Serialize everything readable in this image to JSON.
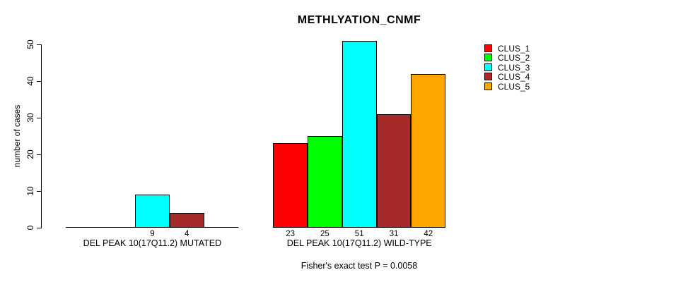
{
  "title": "METHLYATION_CNMF",
  "annotation": "Fisher's exact test P = 0.0058",
  "chart_data": {
    "type": "bar",
    "title": "METHLYATION_CNMF",
    "xlabel": "",
    "ylabel": "number of cases",
    "ylim": [
      0,
      51
    ],
    "yticks": [
      0,
      10,
      20,
      30,
      40,
      50
    ],
    "grid": false,
    "legend_position": "top-right",
    "categories": [
      "DEL PEAK 10(17Q11.2) MUTATED",
      "DEL PEAK 10(17Q11.2) WILD-TYPE"
    ],
    "series": [
      {
        "name": "CLUS_1",
        "color": "#FF0000",
        "values": [
          0,
          23
        ]
      },
      {
        "name": "CLUS_2",
        "color": "#00FF00",
        "values": [
          0,
          25
        ]
      },
      {
        "name": "CLUS_3",
        "color": "#00FFFF",
        "values": [
          9,
          51
        ]
      },
      {
        "name": "CLUS_4",
        "color": "#A52A2A",
        "values": [
          4,
          31
        ]
      },
      {
        "name": "CLUS_5",
        "color": "#FFA500",
        "values": [
          0,
          42
        ]
      }
    ],
    "bar_value_labels_shown": [
      [
        "9",
        "4"
      ],
      [
        "23",
        "25",
        "51",
        "31",
        "42"
      ]
    ],
    "zero_value_labels_hidden": true,
    "annotation": "Fisher's exact test P = 0.0058"
  }
}
